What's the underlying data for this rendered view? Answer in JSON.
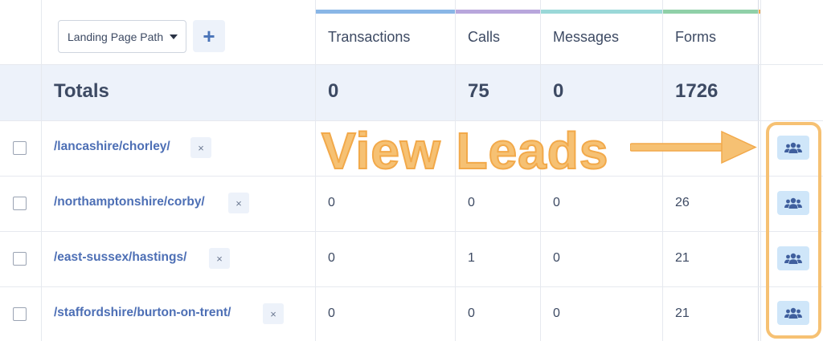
{
  "toolbar": {
    "dimension_select_value": "Landing Page Path",
    "add_label": "+"
  },
  "columns": [
    {
      "label": "Transactions",
      "color": "#89b6e6"
    },
    {
      "label": "Calls",
      "color": "#b8a6dc"
    },
    {
      "label": "Messages",
      "color": "#9ad8d8"
    },
    {
      "label": "Forms",
      "color": "#8fd0a8"
    }
  ],
  "totals": {
    "label": "Totals",
    "transactions": "0",
    "calls": "75",
    "messages": "0",
    "forms": "1726"
  },
  "rows": [
    {
      "path": "/lancashire/chorley/",
      "transactions": "",
      "calls": "",
      "messages": "",
      "forms": ""
    },
    {
      "path": "/northamptonshire/corby/",
      "transactions": "0",
      "calls": "0",
      "messages": "0",
      "forms": "26"
    },
    {
      "path": "/east-sussex/hastings/",
      "transactions": "0",
      "calls": "1",
      "messages": "0",
      "forms": "21"
    },
    {
      "path": "/staffordshire/burton-on-trent/",
      "transactions": "0",
      "calls": "0",
      "messages": "0",
      "forms": "21"
    }
  ],
  "remove_label": "×",
  "annotation": {
    "text": "View Leads",
    "color": "#f6c173"
  },
  "icons": {
    "remove": "close-icon",
    "leads": "users-group-icon",
    "caret": "caret-down-icon"
  }
}
